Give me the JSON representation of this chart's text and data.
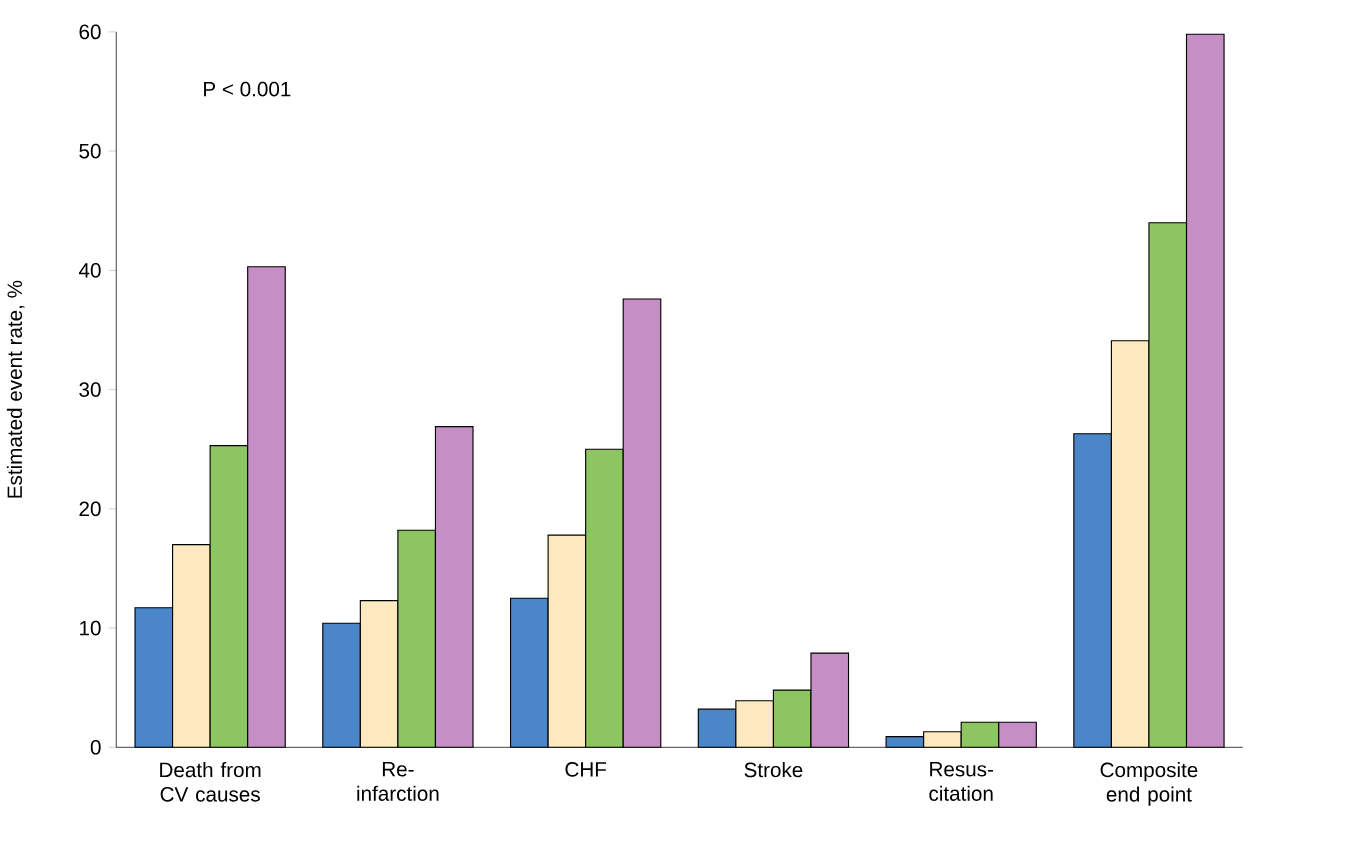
{
  "chart_data": {
    "type": "bar",
    "ylabel": "Estimated event rate, %",
    "categories": [
      "Death from CV causes",
      "Re-infarction",
      "CHF",
      "Stroke",
      "Resus-citation",
      "Composite end point"
    ],
    "series": [
      {
        "color": "#4a86c8",
        "values": [
          11.7,
          10.4,
          12.5,
          3.2,
          0.9,
          26.3
        ]
      },
      {
        "color": "#fde9bf",
        "values": [
          17.0,
          12.3,
          17.8,
          3.9,
          1.3,
          34.1
        ]
      },
      {
        "color": "#8dc561",
        "values": [
          25.3,
          18.2,
          25.0,
          4.8,
          2.1,
          44.0
        ]
      },
      {
        "color": "#c58ec4",
        "values": [
          40.3,
          26.9,
          37.6,
          7.9,
          2.1,
          59.8
        ]
      }
    ],
    "ylim": [
      0,
      60
    ],
    "yticks": [
      0,
      10,
      20,
      30,
      40,
      50,
      60
    ],
    "grid": false,
    "annotations": [
      "P < 0.001"
    ]
  }
}
